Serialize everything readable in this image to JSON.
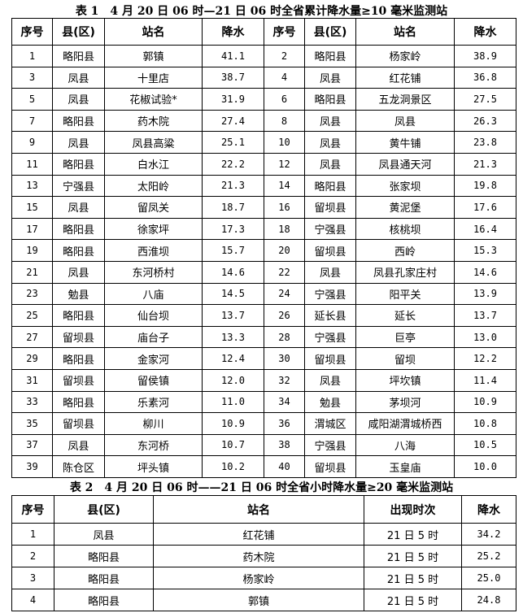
{
  "table1": {
    "title": "表 1　4 月 20 日 06 时—21 日 06 时全省累计降水量≥10 毫米监测站",
    "headers": [
      "序号",
      "县(区)",
      "站名",
      "降水",
      "序号",
      "县(区)",
      "站名",
      "降水"
    ],
    "rows": [
      [
        "1",
        "略阳县",
        "郭镇",
        "41.1",
        "2",
        "略阳县",
        "杨家岭",
        "38.9"
      ],
      [
        "3",
        "凤县",
        "十里店",
        "38.7",
        "4",
        "凤县",
        "红花铺",
        "36.8"
      ],
      [
        "5",
        "凤县",
        "花椒试验*",
        "31.9",
        "6",
        "略阳县",
        "五龙洞景区",
        "27.5"
      ],
      [
        "7",
        "略阳县",
        "药木院",
        "27.4",
        "8",
        "凤县",
        "凤县",
        "26.3"
      ],
      [
        "9",
        "凤县",
        "凤县高粱",
        "25.1",
        "10",
        "凤县",
        "黄牛铺",
        "23.8"
      ],
      [
        "11",
        "略阳县",
        "白水江",
        "22.2",
        "12",
        "凤县",
        "凤县通天河",
        "21.3"
      ],
      [
        "13",
        "宁强县",
        "太阳岭",
        "21.3",
        "14",
        "略阳县",
        "张家坝",
        "19.8"
      ],
      [
        "15",
        "凤县",
        "留凤关",
        "18.7",
        "16",
        "留坝县",
        "黄泥堡",
        "17.6"
      ],
      [
        "17",
        "略阳县",
        "徐家坪",
        "17.3",
        "18",
        "宁强县",
        "核桃坝",
        "16.4"
      ],
      [
        "19",
        "略阳县",
        "西淮坝",
        "15.7",
        "20",
        "留坝县",
        "西岭",
        "15.3"
      ],
      [
        "21",
        "凤县",
        "东河桥村",
        "14.6",
        "22",
        "凤县",
        "凤县孔家庄村",
        "14.6"
      ],
      [
        "23",
        "勉县",
        "八庙",
        "14.5",
        "24",
        "宁强县",
        "阳平关",
        "13.9"
      ],
      [
        "25",
        "略阳县",
        "仙台坝",
        "13.7",
        "26",
        "延长县",
        "延长",
        "13.7"
      ],
      [
        "27",
        "留坝县",
        "庙台子",
        "13.3",
        "28",
        "宁强县",
        "巨亭",
        "13.0"
      ],
      [
        "29",
        "略阳县",
        "金家河",
        "12.4",
        "30",
        "留坝县",
        "留坝",
        "12.2"
      ],
      [
        "31",
        "留坝县",
        "留侯镇",
        "12.0",
        "32",
        "凤县",
        "坪坎镇",
        "11.4"
      ],
      [
        "33",
        "略阳县",
        "乐素河",
        "11.0",
        "34",
        "勉县",
        "茅坝河",
        "10.9"
      ],
      [
        "35",
        "留坝县",
        "柳川",
        "10.9",
        "36",
        "渭城区",
        "咸阳湖渭城桥西",
        "10.8"
      ],
      [
        "37",
        "凤县",
        "东河桥",
        "10.7",
        "38",
        "宁强县",
        "八海",
        "10.5"
      ],
      [
        "39",
        "陈仓区",
        "坪头镇",
        "10.2",
        "40",
        "留坝县",
        "玉皇庙",
        "10.0"
      ]
    ]
  },
  "table2": {
    "title": "表 2　4 月 20 日 06 时——21 日 06 时全省小时降水量≥20 毫米监测站",
    "headers": [
      "序号",
      "县(区)",
      "站名",
      "出现时次",
      "降水"
    ],
    "rows": [
      [
        "1",
        "凤县",
        "红花铺",
        "21 日 5 时",
        "34.2"
      ],
      [
        "2",
        "略阳县",
        "药木院",
        "21 日 5 时",
        "25.2"
      ],
      [
        "3",
        "略阳县",
        "杨家岭",
        "21 日 5 时",
        "25.0"
      ],
      [
        "4",
        "略阳县",
        "郭镇",
        "21 日 5 时",
        "24.8"
      ]
    ]
  }
}
